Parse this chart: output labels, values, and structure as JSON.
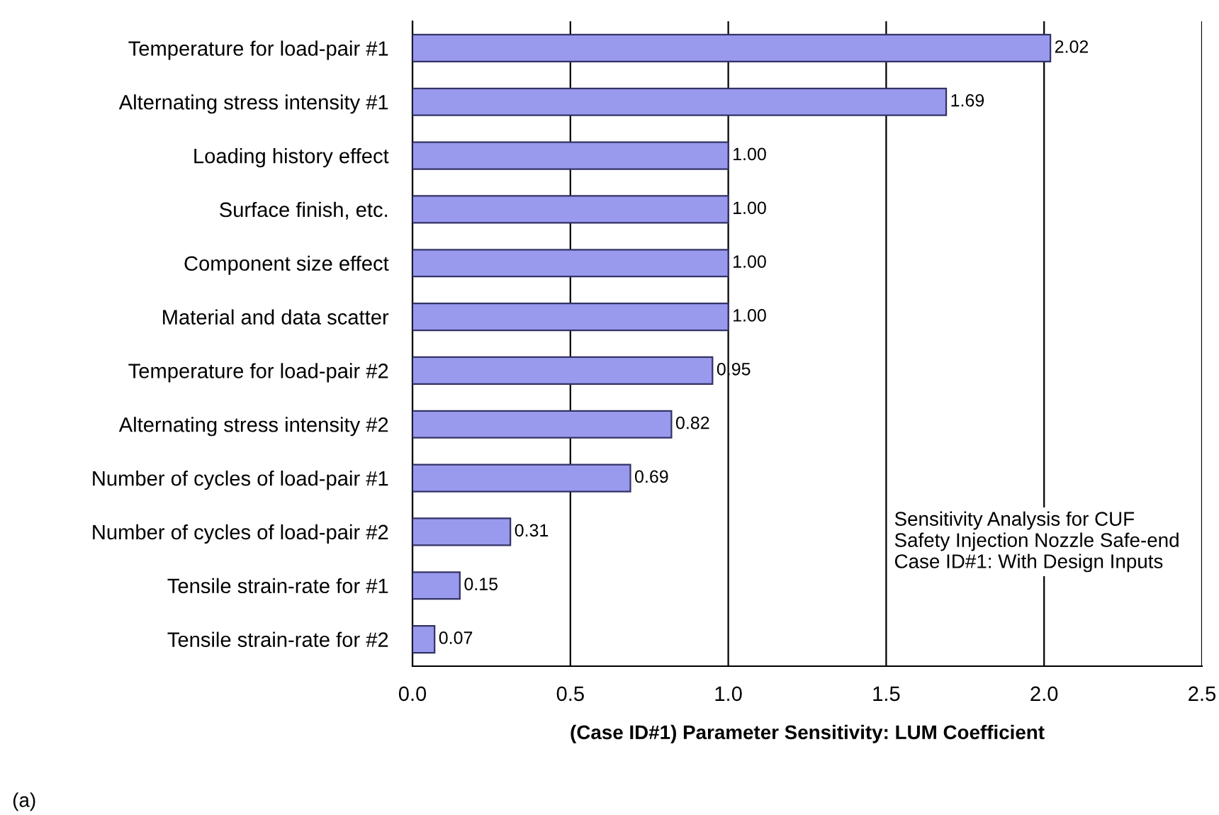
{
  "chart_data": {
    "type": "bar",
    "orientation": "horizontal",
    "xlabel": "(Case ID#1) Parameter Sensitivity: LUM Coefficient",
    "categories": [
      "Temperature for load-pair #1",
      "Alternating stress intensity #1",
      "Loading history effect",
      "Surface finish, etc.",
      "Component size effect",
      "Material and data scatter",
      "Temperature for load-pair #2",
      "Alternating stress intensity #2",
      "Number of cycles of load-pair #1",
      "Number of cycles of load-pair #2",
      "Tensile strain-rate for #1",
      "Tensile strain-rate for #2"
    ],
    "values": [
      2.02,
      1.69,
      1.0,
      1.0,
      1.0,
      1.0,
      0.95,
      0.82,
      0.69,
      0.31,
      0.15,
      0.07
    ],
    "value_labels": [
      "2.02",
      "1.69",
      "1.00",
      "1.00",
      "1.00",
      "1.00",
      "0.95",
      "0.82",
      "0.69",
      "0.31",
      "0.15",
      "0.07"
    ],
    "color": "#9999ee",
    "xlim": [
      0,
      2.5
    ],
    "xticks": [
      {
        "value": 0,
        "label": "0.0"
      },
      {
        "value": 0.5,
        "label": "0.5"
      },
      {
        "value": 1,
        "label": "1.0"
      },
      {
        "value": 1.5,
        "label": "1.5"
      },
      {
        "value": 2,
        "label": "2.0"
      },
      {
        "value": 2.5,
        "label": "2.5"
      }
    ],
    "grid": "x",
    "annotations": [
      "Sensitivity Analysis for CUF\nSafety Injection Nozzle Safe-end\nCase ID#1: With Design Inputs",
      "(a)"
    ]
  }
}
